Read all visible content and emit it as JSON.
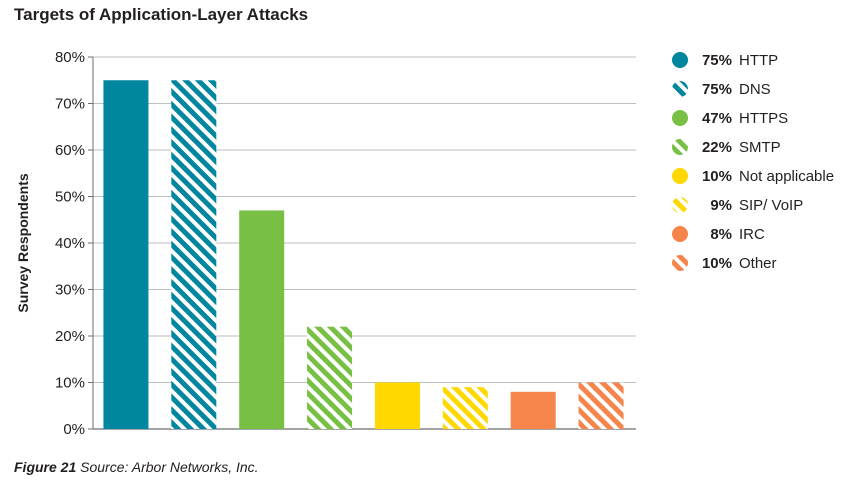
{
  "chart_data": {
    "type": "bar",
    "title": "Targets of Application-Layer Attacks",
    "ylabel": "Survey Respondents",
    "xlabel": "",
    "ylim": [
      0,
      80
    ],
    "yticks": [
      "0%",
      "10%",
      "20%",
      "30%",
      "40%",
      "50%",
      "60%",
      "70%",
      "80%"
    ],
    "yticks_values": [
      0,
      10,
      20,
      30,
      40,
      50,
      60,
      70,
      80
    ],
    "grid": true,
    "legend_position": "right",
    "categories": [
      "HTTP",
      "DNS",
      "HTTPS",
      "SMTP",
      "Not applicable",
      "SIP/ VoIP",
      "IRC",
      "Other"
    ],
    "values": [
      75,
      75,
      47,
      22,
      10,
      9,
      8,
      10
    ],
    "value_labels": [
      "75%",
      "75%",
      "47%",
      "22%",
      "10%",
      "9%",
      "8%",
      "10%"
    ],
    "colors": [
      "#00869e",
      "#00869e",
      "#77c043",
      "#77c043",
      "#ffd800",
      "#ffd800",
      "#f5854a",
      "#f5854a"
    ],
    "hatched": [
      false,
      true,
      false,
      true,
      false,
      true,
      false,
      true
    ]
  },
  "caption": {
    "figure": "Figure 21",
    "source": "Source: Arbor Networks, Inc."
  }
}
